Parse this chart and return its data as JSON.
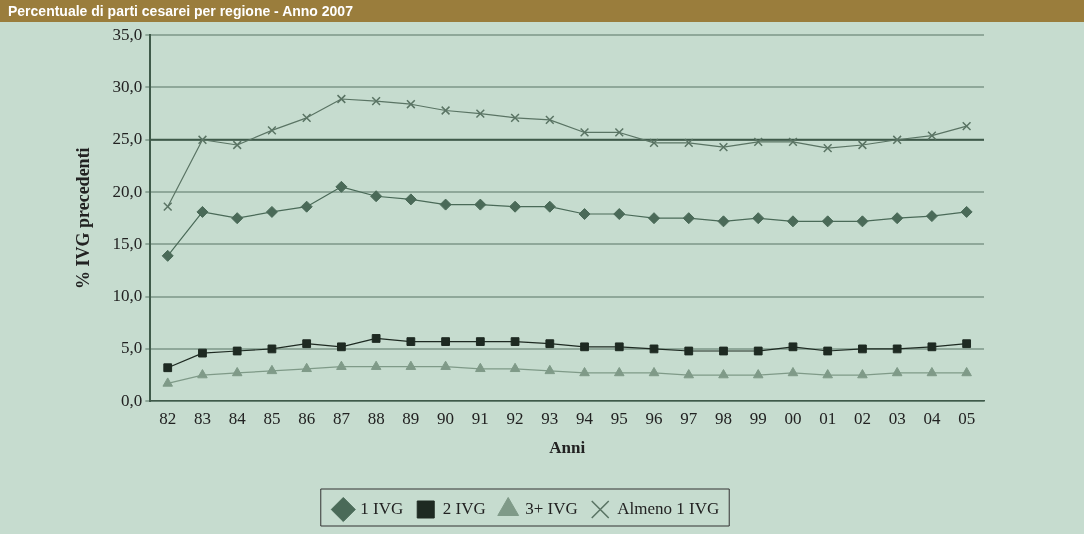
{
  "chart_data": {
    "type": "line",
    "title": "Percentuale di parti cesarei per regione - Anno 2007",
    "xlabel": "Anni",
    "ylabel": "% IVG precedenti",
    "categories": [
      "82",
      "83",
      "84",
      "85",
      "86",
      "87",
      "88",
      "89",
      "90",
      "91",
      "92",
      "93",
      "94",
      "95",
      "96",
      "97",
      "98",
      "99",
      "00",
      "01",
      "02",
      "03",
      "04",
      "05"
    ],
    "series": [
      {
        "name": "1 IVG",
        "color": "#4a6a58",
        "marker": "diamond",
        "values": [
          13.9,
          18.1,
          17.5,
          18.1,
          18.6,
          20.5,
          19.6,
          19.3,
          18.8,
          18.8,
          18.6,
          18.6,
          17.9,
          17.9,
          17.5,
          17.5,
          17.2,
          17.5,
          17.2,
          17.2,
          17.2,
          17.5,
          17.7,
          18.1
        ]
      },
      {
        "name": "2 IVG",
        "color": "#1e2a22",
        "marker": "square",
        "values": [
          3.2,
          4.6,
          4.8,
          5.0,
          5.5,
          5.2,
          6.0,
          5.7,
          5.7,
          5.7,
          5.7,
          5.5,
          5.2,
          5.2,
          5.0,
          4.8,
          4.8,
          4.8,
          5.2,
          4.8,
          5.0,
          5.0,
          5.2,
          5.5
        ]
      },
      {
        "name": "3+ IVG",
        "color": "#7f9a88",
        "marker": "triangle",
        "values": [
          1.7,
          2.5,
          2.7,
          2.9,
          3.1,
          3.3,
          3.3,
          3.3,
          3.3,
          3.1,
          3.1,
          2.9,
          2.7,
          2.7,
          2.7,
          2.5,
          2.5,
          2.5,
          2.7,
          2.5,
          2.5,
          2.7,
          2.7,
          2.7
        ]
      },
      {
        "name": "Almeno 1 IVG",
        "color": "#5a7464",
        "marker": "cross",
        "values": [
          18.6,
          25.0,
          24.5,
          25.9,
          27.1,
          28.9,
          28.7,
          28.4,
          27.8,
          27.5,
          27.1,
          26.9,
          25.7,
          25.7,
          24.7,
          24.7,
          24.3,
          24.8,
          24.8,
          24.2,
          24.5,
          25.0,
          25.4,
          26.3
        ]
      }
    ],
    "ylim": [
      0,
      35
    ],
    "yticks": [
      {
        "value": 0,
        "label": "0,0"
      },
      {
        "value": 5,
        "label": "5,0"
      },
      {
        "value": 10,
        "label": "10,0"
      },
      {
        "value": 15,
        "label": "15,0"
      },
      {
        "value": 20,
        "label": "20,0"
      },
      {
        "value": 25,
        "label": "25,0"
      },
      {
        "value": 30,
        "label": "30,0"
      },
      {
        "value": 35,
        "label": "35,0"
      }
    ],
    "ref_lines": [
      {
        "axis": "y",
        "value": 25,
        "color": "#3f5a4a"
      }
    ],
    "grid": "y",
    "legend": "bottom"
  }
}
